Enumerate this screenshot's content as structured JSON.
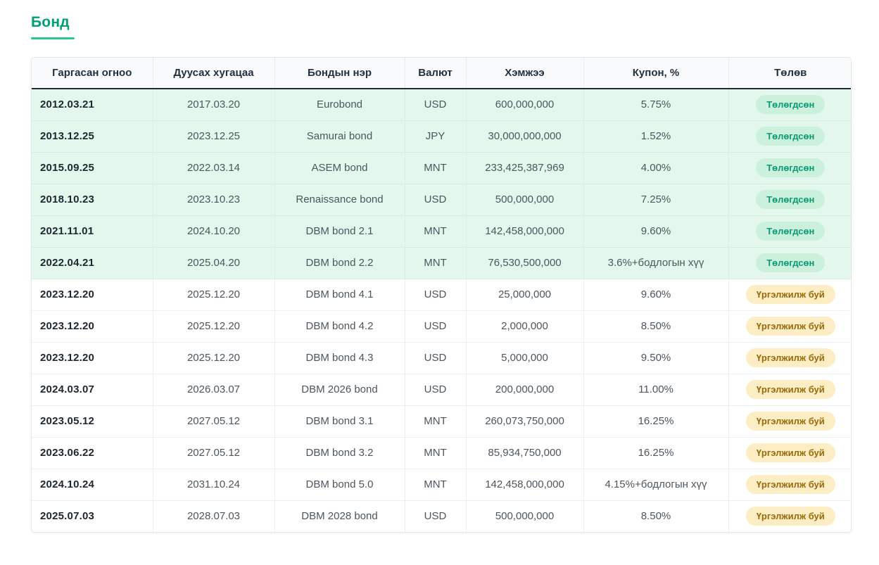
{
  "page": {
    "title": "Бонд"
  },
  "colors": {
    "accent_teal": "#00a077",
    "header_text": "#22313f",
    "row_paid_bg": "#e3f7ec",
    "badge_paid_bg": "#cbf1dd",
    "badge_paid_text": "#0b9b74",
    "badge_ongoing_bg": "#fcedc4",
    "badge_ongoing_text": "#9a6a08"
  },
  "table": {
    "columns": [
      "Гаргасан огноо",
      "Дуусах хугацаа",
      "Бондын нэр",
      "Валют",
      "Хэмжээ",
      "Купон, %",
      "Төлөв"
    ],
    "rows": [
      {
        "issued": "2012.03.21",
        "maturity": "2017.03.20",
        "name": "Eurobond",
        "currency": "USD",
        "amount": "600,000,000",
        "coupon": "5.75%",
        "status": "paid",
        "status_label": "Төлөгдсөн"
      },
      {
        "issued": "2013.12.25",
        "maturity": "2023.12.25",
        "name": "Samurai bond",
        "currency": "JPY",
        "amount": "30,000,000,000",
        "coupon": "1.52%",
        "status": "paid",
        "status_label": "Төлөгдсөн"
      },
      {
        "issued": "2015.09.25",
        "maturity": "2022.03.14",
        "name": "ASEM bond",
        "currency": "MNT",
        "amount": "233,425,387,969",
        "coupon": "4.00%",
        "status": "paid",
        "status_label": "Төлөгдсөн"
      },
      {
        "issued": "2018.10.23",
        "maturity": "2023.10.23",
        "name": "Renaissance bond",
        "currency": "USD",
        "amount": "500,000,000",
        "coupon": "7.25%",
        "status": "paid",
        "status_label": "Төлөгдсөн"
      },
      {
        "issued": "2021.11.01",
        "maturity": "2024.10.20",
        "name": "DBM bond 2.1",
        "currency": "MNT",
        "amount": "142,458,000,000",
        "coupon": "9.60%",
        "status": "paid",
        "status_label": "Төлөгдсөн"
      },
      {
        "issued": "2022.04.21",
        "maturity": "2025.04.20",
        "name": "DBM bond 2.2",
        "currency": "MNT",
        "amount": "76,530,500,000",
        "coupon": "3.6%+бодлогын хүү",
        "status": "paid",
        "status_label": "Төлөгдсөн"
      },
      {
        "issued": "2023.12.20",
        "maturity": "2025.12.20",
        "name": "DBM bond 4.1",
        "currency": "USD",
        "amount": "25,000,000",
        "coupon": "9.60%",
        "status": "ongoing",
        "status_label": "Үргэлжилж буй"
      },
      {
        "issued": "2023.12.20",
        "maturity": "2025.12.20",
        "name": "DBM bond 4.2",
        "currency": "USD",
        "amount": "2,000,000",
        "coupon": "8.50%",
        "status": "ongoing",
        "status_label": "Үргэлжилж буй"
      },
      {
        "issued": "2023.12.20",
        "maturity": "2025.12.20",
        "name": "DBM bond 4.3",
        "currency": "USD",
        "amount": "5,000,000",
        "coupon": "9.50%",
        "status": "ongoing",
        "status_label": "Үргэлжилж буй"
      },
      {
        "issued": "2024.03.07",
        "maturity": "2026.03.07",
        "name": "DBM 2026 bond",
        "currency": "USD",
        "amount": "200,000,000",
        "coupon": "11.00%",
        "status": "ongoing",
        "status_label": "Үргэлжилж буй"
      },
      {
        "issued": "2023.05.12",
        "maturity": "2027.05.12",
        "name": "DBM bond 3.1",
        "currency": "MNT",
        "amount": "260,073,750,000",
        "coupon": "16.25%",
        "status": "ongoing",
        "status_label": "Үргэлжилж буй"
      },
      {
        "issued": "2023.06.22",
        "maturity": "2027.05.12",
        "name": "DBM bond 3.2",
        "currency": "MNT",
        "amount": "85,934,750,000",
        "coupon": "16.25%",
        "status": "ongoing",
        "status_label": "Үргэлжилж буй"
      },
      {
        "issued": "2024.10.24",
        "maturity": "2031.10.24",
        "name": "DBM bond 5.0",
        "currency": "MNT",
        "amount": "142,458,000,000",
        "coupon": "4.15%+бодлогын хүү",
        "status": "ongoing",
        "status_label": "Үргэлжилж буй"
      },
      {
        "issued": "2025.07.03",
        "maturity": "2028.07.03",
        "name": "DBM 2028 bond",
        "currency": "USD",
        "amount": "500,000,000",
        "coupon": "8.50%",
        "status": "ongoing",
        "status_label": "Үргэлжилж буй"
      }
    ]
  }
}
